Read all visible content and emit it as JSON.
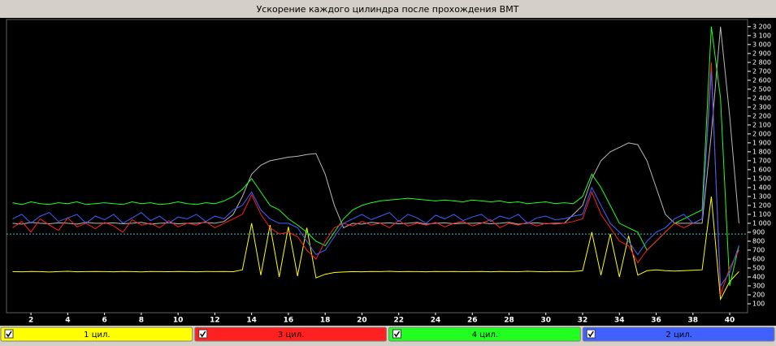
{
  "chart_data": {
    "type": "line",
    "title": "Ускорение каждого цилиндра после прохождения ВМТ",
    "x": [
      1,
      1.5,
      2,
      2.5,
      3,
      3.5,
      4,
      4.5,
      5,
      5.5,
      6,
      6.5,
      7,
      7.5,
      8,
      8.5,
      9,
      9.5,
      10,
      10.5,
      11,
      11.5,
      12,
      12.5,
      13,
      13.5,
      14,
      14.5,
      15,
      15.5,
      16,
      16.5,
      17,
      17.5,
      18,
      18.5,
      19,
      19.5,
      20,
      20.5,
      21,
      21.5,
      22,
      22.5,
      23,
      23.5,
      24,
      24.5,
      25,
      25.5,
      26,
      26.5,
      27,
      27.5,
      28,
      28.5,
      29,
      29.5,
      30,
      30.5,
      31,
      31.5,
      32,
      32.5,
      33,
      33.5,
      34,
      34.5,
      35,
      35.5,
      36,
      36.5,
      37,
      37.5,
      38,
      38.5,
      39,
      39.5,
      40,
      40.5
    ],
    "series": [
      {
        "name": "1 цил.",
        "color": "#ffff00",
        "values": [
          460,
          458,
          462,
          460,
          455,
          460,
          463,
          458,
          460,
          462,
          460,
          458,
          462,
          460,
          457,
          461,
          460,
          459,
          462,
          460,
          458,
          462,
          460,
          461,
          459,
          480,
          1000,
          420,
          980,
          400,
          960,
          410,
          950,
          390,
          430,
          450,
          455,
          460,
          458,
          462,
          460,
          463,
          459,
          461,
          460,
          458,
          462,
          460,
          461,
          459,
          460,
          462,
          458,
          461,
          460,
          459,
          463,
          460,
          458,
          461,
          460,
          462,
          470,
          900,
          420,
          880,
          400,
          860,
          420,
          470,
          480,
          470,
          465,
          470,
          475,
          480,
          1300,
          150,
          350,
          460
        ]
      },
      {
        "name": "3 цил.",
        "color": "#ff2020",
        "values": [
          950,
          1020,
          900,
          1050,
          980,
          920,
          1060,
          960,
          1000,
          940,
          1010,
          970,
          900,
          1040,
          980,
          1000,
          950,
          1030,
          960,
          1000,
          980,
          1020,
          950,
          1000,
          1050,
          1100,
          1320,
          1100,
          950,
          880,
          900,
          850,
          700,
          600,
          800,
          950,
          1000,
          970,
          1020,
          980,
          1000,
          950,
          1030,
          970,
          1000,
          980,
          1010,
          960,
          1000,
          1020,
          970,
          1000,
          1040,
          950,
          1000,
          980,
          1010,
          970,
          1000,
          990,
          1000,
          1020,
          1050,
          1350,
          1100,
          950,
          800,
          750,
          560,
          700,
          800,
          900,
          1000,
          950,
          1000,
          1050,
          2800,
          200,
          500,
          700
        ]
      },
      {
        "name": "4 цил.",
        "color": "#20ff20",
        "values": [
          1230,
          1210,
          1240,
          1220,
          1210,
          1230,
          1220,
          1240,
          1210,
          1220,
          1230,
          1220,
          1210,
          1240,
          1220,
          1230,
          1210,
          1220,
          1240,
          1220,
          1210,
          1230,
          1220,
          1250,
          1300,
          1380,
          1500,
          1350,
          1200,
          1150,
          1050,
          980,
          900,
          800,
          750,
          900,
          1050,
          1150,
          1200,
          1230,
          1250,
          1260,
          1270,
          1280,
          1270,
          1260,
          1250,
          1260,
          1250,
          1240,
          1260,
          1250,
          1240,
          1250,
          1230,
          1240,
          1220,
          1230,
          1240,
          1220,
          1230,
          1220,
          1300,
          1550,
          1400,
          1200,
          1000,
          950,
          900,
          700,
          800,
          900,
          1000,
          1050,
          1100,
          1150,
          3200,
          2400,
          300,
          750
        ]
      },
      {
        "name": "2 цил.",
        "color": "#4060ff",
        "values": [
          1050,
          1100,
          1000,
          1080,
          1120,
          1020,
          1060,
          1100,
          1000,
          1080,
          1040,
          1100,
          1000,
          1060,
          1120,
          1030,
          1080,
          1000,
          1070,
          1050,
          1100,
          1020,
          1080,
          1050,
          1150,
          1200,
          1350,
          1150,
          1050,
          1000,
          1000,
          950,
          800,
          650,
          700,
          850,
          1000,
          1050,
          1100,
          1040,
          1080,
          1120,
          1020,
          1100,
          1060,
          1000,
          1090,
          1050,
          1100,
          1030,
          1070,
          1100,
          1020,
          1080,
          1050,
          1100,
          1000,
          1060,
          1080,
          1040,
          1050,
          1080,
          1100,
          1400,
          1200,
          1000,
          900,
          800,
          650,
          800,
          900,
          950,
          1050,
          1100,
          1000,
          1050,
          2700,
          300,
          450,
          750
        ]
      },
      {
        "color": "#b8b8b8",
        "values": [
          1000,
          990,
          1010,
          1000,
          995,
          1005,
          1000,
          990,
          1010,
          1000,
          1000,
          1005,
          995,
          1000,
          1010,
          990,
          1000,
          1005,
          995,
          1000,
          1000,
          1010,
          1000,
          1020,
          1100,
          1300,
          1550,
          1650,
          1700,
          1720,
          1740,
          1750,
          1770,
          1780,
          1550,
          1200,
          950,
          1000,
          990,
          1010,
          1000,
          1005,
          995,
          1000,
          1010,
          990,
          1000,
          1005,
          995,
          1000,
          1000,
          1005,
          995,
          1000,
          1010,
          990,
          1000,
          1005,
          995,
          1000,
          1000,
          1100,
          1200,
          1500,
          1700,
          1800,
          1850,
          1900,
          1880,
          1700,
          1400,
          1100,
          1000,
          1000,
          1000,
          1000,
          2000,
          3200,
          2200,
          1000
        ]
      }
    ],
    "reference_line": 880,
    "xlim": [
      0.67,
      40.97
    ],
    "xticks": [
      2,
      4,
      6,
      8,
      10,
      12,
      14,
      16,
      18,
      20,
      22,
      24,
      26,
      28,
      30,
      32,
      34,
      36,
      38,
      40
    ],
    "ylim": [
      0,
      3280
    ],
    "yticks": [
      100,
      200,
      300,
      400,
      500,
      600,
      700,
      800,
      900,
      {
        "value": 1000,
        "label": "1 000"
      },
      {
        "value": 1100,
        "label": "1 100"
      },
      {
        "value": 1200,
        "label": "1 200"
      },
      {
        "value": 1300,
        "label": "1 300"
      },
      {
        "value": 1400,
        "label": "1 400"
      },
      {
        "value": 1500,
        "label": "1 500"
      },
      {
        "value": 1600,
        "label": "1 600"
      },
      {
        "value": 1700,
        "label": "1 700"
      },
      {
        "value": 1800,
        "label": "1 800"
      },
      {
        "value": 1900,
        "label": "1 900"
      },
      {
        "value": 2000,
        "label": "2 000"
      },
      {
        "value": 2100,
        "label": "2 100"
      },
      {
        "value": 2200,
        "label": "2 200"
      },
      {
        "value": 2300,
        "label": "2 300"
      },
      {
        "value": 2400,
        "label": "2 400"
      },
      {
        "value": 2500,
        "label": "2 500"
      },
      {
        "value": 2600,
        "label": "2 600"
      },
      {
        "value": 2700,
        "label": "2 700"
      },
      {
        "value": 2800,
        "label": "2 800"
      },
      {
        "value": 2900,
        "label": "2 900"
      },
      {
        "value": 3000,
        "label": "3 000"
      },
      {
        "value": 3100,
        "label": "3 100"
      },
      {
        "value": 3200,
        "label": "3 200"
      }
    ],
    "grid": false,
    "legend": "bottom"
  }
}
